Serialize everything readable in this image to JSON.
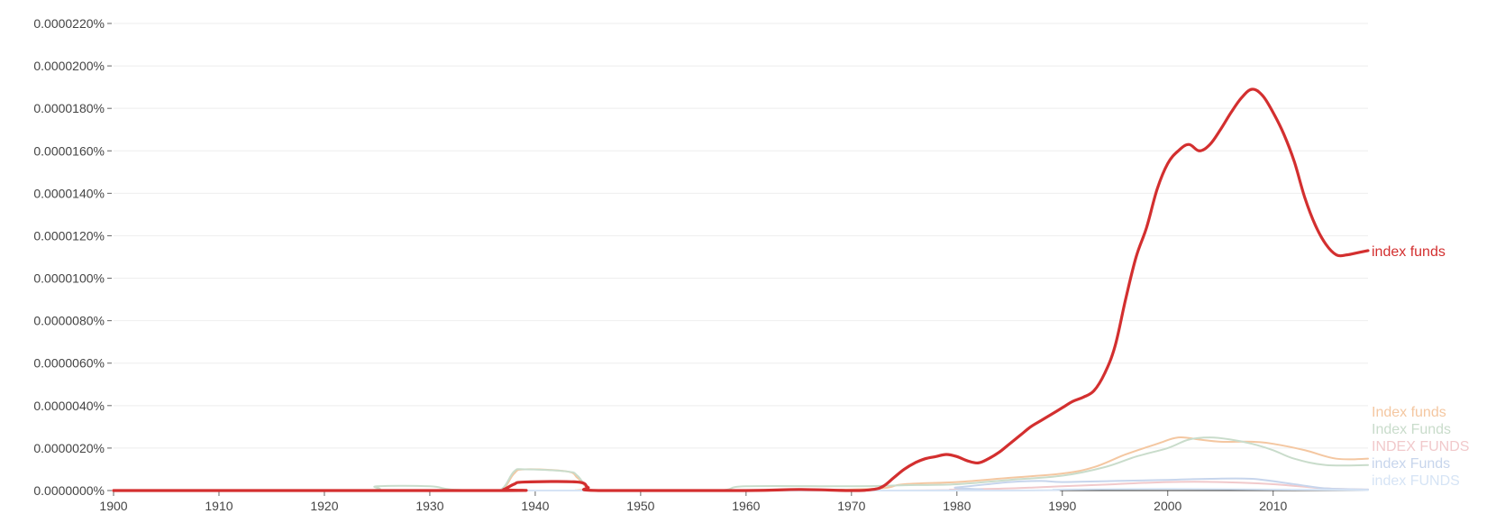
{
  "chart_data": {
    "type": "line",
    "title": "",
    "xlabel": "",
    "ylabel": "",
    "xlim": [
      1900,
      2019
    ],
    "ylim": [
      0,
      2.2e-07
    ],
    "grid": true,
    "y_ticks": [
      0,
      2e-08,
      4e-08,
      6e-08,
      8e-08,
      1e-07,
      1.2e-07,
      1.4e-07,
      1.6e-07,
      1.8e-07,
      2e-07,
      2.2e-07
    ],
    "y_tick_labels": [
      "0.0000000%",
      "0.0000020%",
      "0.0000040%",
      "0.0000060%",
      "0.0000080%",
      "0.0000100%",
      "0.0000120%",
      "0.0000140%",
      "0.0000160%",
      "0.0000180%",
      "0.0000200%",
      "0.0000220%"
    ],
    "x_ticks": [
      1900,
      1910,
      1920,
      1930,
      1940,
      1950,
      1960,
      1970,
      1980,
      1990,
      2000,
      2010
    ],
    "x_tick_labels": [
      "1900",
      "1910",
      "1920",
      "1930",
      "1940",
      "1950",
      "1960",
      "1970",
      "1980",
      "1990",
      "2000",
      "2010"
    ],
    "series": [
      {
        "name": "index funds",
        "color": "#d32f2f",
        "emphasis": true,
        "x": [
          1900,
          1936,
          1937,
          1938,
          1939,
          1944,
          1945,
          1946,
          1960,
          1965,
          1970,
          1972,
          1973,
          1974,
          1975,
          1976,
          1977,
          1978,
          1979,
          1980,
          1981,
          1982,
          1983,
          1984,
          1985,
          1986,
          1987,
          1988,
          1989,
          1990,
          1991,
          1992,
          1993,
          1994,
          1995,
          1996,
          1997,
          1998,
          1999,
          2000,
          2001,
          2002,
          2003,
          2004,
          2005,
          2006,
          2007,
          2008,
          2009,
          2010,
          2011,
          2012,
          2013,
          2014,
          2015,
          2016,
          2017,
          2018,
          2019
        ],
        "y": [
          0,
          0,
          5e-10,
          3e-09,
          4e-09,
          4e-09,
          1.5e-09,
          0,
          0,
          5e-10,
          0,
          5e-10,
          2e-09,
          6e-09,
          1e-08,
          1.3e-08,
          1.5e-08,
          1.6e-08,
          1.7e-08,
          1.6e-08,
          1.4e-08,
          1.3e-08,
          1.5e-08,
          1.8e-08,
          2.2e-08,
          2.6e-08,
          3e-08,
          3.3e-08,
          3.6e-08,
          3.9e-08,
          4.2e-08,
          4.4e-08,
          4.7e-08,
          5.5e-08,
          6.8e-08,
          9e-08,
          1.1e-07,
          1.24e-07,
          1.42e-07,
          1.54e-07,
          1.6e-07,
          1.63e-07,
          1.6e-07,
          1.63e-07,
          1.7e-07,
          1.78e-07,
          1.85e-07,
          1.89e-07,
          1.86e-07,
          1.78e-07,
          1.68e-07,
          1.55e-07,
          1.38e-07,
          1.25e-07,
          1.16e-07,
          1.11e-07,
          1.11e-07,
          1.12e-07,
          1.13e-07
        ]
      },
      {
        "name": "Index funds",
        "color": "#f4c7a1",
        "emphasis": false,
        "x": [
          1900,
          1936,
          1937,
          1938,
          1939,
          1943,
          1944,
          1945,
          1946,
          1970,
          1975,
          1980,
          1985,
          1990,
          1993,
          1996,
          1999,
          2001,
          2003,
          2005,
          2008,
          2010,
          2013,
          2016,
          2019
        ],
        "y": [
          0,
          0,
          8e-10,
          8e-09,
          1e-08,
          9e-09,
          6e-09,
          1e-09,
          0,
          5e-10,
          3e-09,
          4e-09,
          6e-09,
          8e-09,
          1.1e-08,
          1.7e-08,
          2.2e-08,
          2.5e-08,
          2.4e-08,
          2.3e-08,
          2.3e-08,
          2.2e-08,
          1.9e-08,
          1.5e-08,
          1.5e-08
        ]
      },
      {
        "name": "Index Funds",
        "color": "#c9dccb",
        "emphasis": false,
        "x": [
          1900,
          1923,
          1925,
          1930,
          1932,
          1936,
          1937,
          1938,
          1939,
          1943,
          1944,
          1945,
          1946,
          1957,
          1960,
          1970,
          1975,
          1980,
          1985,
          1990,
          1994,
          1997,
          2000,
          2002,
          2004,
          2006,
          2008,
          2010,
          2012,
          2015,
          2019
        ],
        "y": [
          0,
          0,
          2e-09,
          2e-09,
          5e-10,
          0,
          1.5e-09,
          9e-09,
          1e-08,
          9e-09,
          7e-09,
          1e-09,
          0,
          0,
          2e-09,
          2e-09,
          2.5e-09,
          3e-09,
          5e-09,
          7e-09,
          1.1e-08,
          1.6e-08,
          2e-08,
          2.4e-08,
          2.5e-08,
          2.4e-08,
          2.2e-08,
          1.9e-08,
          1.5e-08,
          1.2e-08,
          1.2e-08
        ]
      },
      {
        "name": "INDEX FUNDS",
        "color": "#f1c9cb",
        "emphasis": false,
        "x": [
          1900,
          1970,
          1980,
          1985,
          1990,
          1995,
          2000,
          2005,
          2010,
          2015,
          2019
        ],
        "y": [
          0,
          0,
          5e-10,
          1e-09,
          2e-09,
          3e-09,
          4e-09,
          4e-09,
          3e-09,
          1e-09,
          5e-10
        ]
      },
      {
        "name": "index Funds",
        "color": "#c7d5ec",
        "emphasis": false,
        "x": [
          1900,
          1975,
          1980,
          1985,
          1988,
          1990,
          1995,
          2000,
          2004,
          2008,
          2012,
          2015,
          2019
        ],
        "y": [
          0,
          0,
          1.5e-09,
          4e-09,
          4.5e-09,
          4e-09,
          4.5e-09,
          5e-09,
          5.5e-09,
          5.5e-09,
          3e-09,
          1e-09,
          5e-10
        ]
      },
      {
        "name": "index FUNDS",
        "color": "#d6e4f5",
        "emphasis": false,
        "x": [
          1900,
          1980,
          1990,
          2000,
          2010,
          2019
        ],
        "y": [
          0,
          0,
          5e-10,
          8e-10,
          5e-10,
          2e-10
        ]
      }
    ]
  }
}
